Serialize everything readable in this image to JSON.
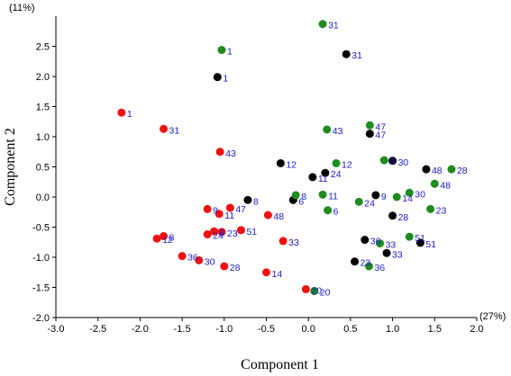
{
  "chart_data": {
    "type": "scatter",
    "xlabel": "Component 1",
    "ylabel": "Component 2",
    "x_variance_label": "(27%)",
    "y_variance_label": "(11%)",
    "xlim": [
      -3.0,
      2.0
    ],
    "ylim": [
      -2.0,
      3.0
    ],
    "x_ticks": [
      "-3.0",
      "-2.5",
      "-2.0",
      "-1.5",
      "-1.0",
      "-0.5",
      "0.0",
      "0.5",
      "1.0",
      "1.5",
      "2.0"
    ],
    "y_ticks": [
      "-2.0",
      "-1.5",
      "-1.0",
      "-0.5",
      "0.0",
      "0.5",
      "1.0",
      "1.5",
      "2.0",
      "2.5"
    ],
    "grid": false,
    "series": [
      {
        "color": "#ee1111",
        "points": [
          {
            "x": -2.22,
            "y": 1.4,
            "label": "1"
          },
          {
            "x": -1.72,
            "y": 1.13,
            "label": "31"
          },
          {
            "x": -1.05,
            "y": 0.75,
            "label": "43"
          },
          {
            "x": -1.2,
            "y": -0.2,
            "label": "9"
          },
          {
            "x": -1.06,
            "y": -0.28,
            "label": "11"
          },
          {
            "x": -0.93,
            "y": -0.18,
            "label": "47"
          },
          {
            "x": -0.48,
            "y": -0.3,
            "label": "48"
          },
          {
            "x": -1.12,
            "y": -0.57,
            "label": "6"
          },
          {
            "x": -1.2,
            "y": -0.62,
            "label": "24"
          },
          {
            "x": -1.03,
            "y": -0.58,
            "label": "23"
          },
          {
            "x": -0.8,
            "y": -0.55,
            "label": "51"
          },
          {
            "x": -1.72,
            "y": -0.65,
            "label": "8"
          },
          {
            "x": -1.8,
            "y": -0.69,
            "label": "12"
          },
          {
            "x": -0.3,
            "y": -0.73,
            "label": "33"
          },
          {
            "x": -1.5,
            "y": -0.98,
            "label": "36"
          },
          {
            "x": -1.3,
            "y": -1.05,
            "label": "30"
          },
          {
            "x": -1.0,
            "y": -1.15,
            "label": "28"
          },
          {
            "x": -0.5,
            "y": -1.25,
            "label": "14"
          },
          {
            "x": -0.03,
            "y": -1.53,
            "label": "20"
          }
        ]
      },
      {
        "color": "#000000",
        "points": [
          {
            "x": -1.08,
            "y": 1.99,
            "label": "1"
          },
          {
            "x": 0.45,
            "y": 2.37,
            "label": "31"
          },
          {
            "x": 0.73,
            "y": 1.05,
            "label": "47"
          },
          {
            "x": -0.33,
            "y": 0.56,
            "label": "12"
          },
          {
            "x": 0.2,
            "y": 0.4,
            "label": "24"
          },
          {
            "x": 0.05,
            "y": 0.33,
            "label": "11"
          },
          {
            "x": 1.0,
            "y": 0.6,
            "label": "30"
          },
          {
            "x": 1.4,
            "y": 0.46,
            "label": "48"
          },
          {
            "x": -0.72,
            "y": -0.05,
            "label": "8"
          },
          {
            "x": -0.18,
            "y": -0.05,
            "label": "6"
          },
          {
            "x": 0.8,
            "y": 0.03,
            "label": "9"
          },
          {
            "x": 1.0,
            "y": -0.31,
            "label": "28"
          },
          {
            "x": 0.67,
            "y": -0.71,
            "label": "36"
          },
          {
            "x": 1.33,
            "y": -0.76,
            "label": "51"
          },
          {
            "x": 0.93,
            "y": -0.93,
            "label": "33"
          },
          {
            "x": 0.55,
            "y": -1.07,
            "label": "23"
          }
        ]
      },
      {
        "color": "#1e8c1e",
        "points": [
          {
            "x": -1.03,
            "y": 2.44,
            "label": "1"
          },
          {
            "x": 0.17,
            "y": 2.87,
            "label": "31"
          },
          {
            "x": 0.22,
            "y": 1.12,
            "label": "43"
          },
          {
            "x": 0.73,
            "y": 1.19,
            "label": "47"
          },
          {
            "x": 0.33,
            "y": 0.56,
            "label": "12"
          },
          {
            "x": 0.9,
            "y": 0.61,
            "label": "9"
          },
          {
            "x": 1.7,
            "y": 0.46,
            "label": "28"
          },
          {
            "x": 1.5,
            "y": 0.22,
            "label": "48"
          },
          {
            "x": 1.2,
            "y": 0.07,
            "label": "30"
          },
          {
            "x": 1.05,
            "y": 0.0,
            "label": "14"
          },
          {
            "x": 0.17,
            "y": 0.04,
            "label": "11"
          },
          {
            "x": -0.15,
            "y": 0.03,
            "label": "8"
          },
          {
            "x": 0.23,
            "y": -0.22,
            "label": "6"
          },
          {
            "x": 0.6,
            "y": -0.08,
            "label": "24"
          },
          {
            "x": 1.45,
            "y": -0.2,
            "label": "23"
          },
          {
            "x": 1.2,
            "y": -0.66,
            "label": "51"
          },
          {
            "x": 0.85,
            "y": -0.77,
            "label": "33"
          },
          {
            "x": 0.72,
            "y": -1.15,
            "label": "36"
          },
          {
            "x": 0.07,
            "y": -1.56,
            "label": "20"
          }
        ]
      }
    ]
  }
}
